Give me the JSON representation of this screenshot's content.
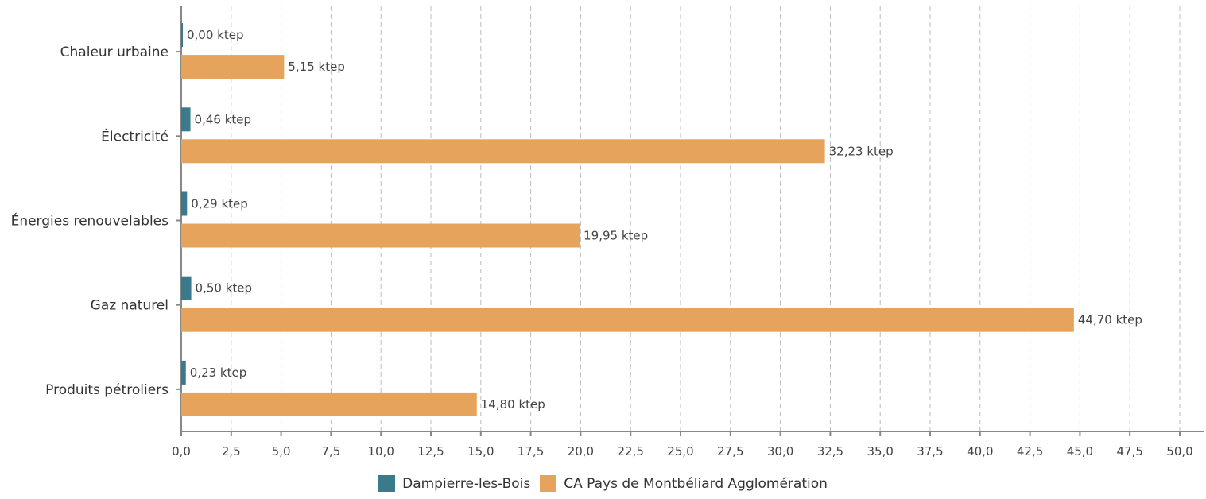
{
  "chart_data": {
    "type": "bar",
    "orientation": "horizontal",
    "categories": [
      "Chaleur urbaine",
      "Électricité",
      "Énergies renouvelables",
      "Gaz naturel",
      "Produits pétroliers"
    ],
    "series": [
      {
        "name": "Dampierre-les-Bois",
        "color": "#3a7a8a",
        "values": [
          0.0,
          0.46,
          0.29,
          0.5,
          0.23
        ],
        "labels": [
          "0,00 ktep",
          "0,46 ktep",
          "0,29 ktep",
          "0,50 ktep",
          "0,23 ktep"
        ]
      },
      {
        "name": "CA Pays de Montbéliard Agglomération",
        "color": "#e6a35c",
        "values": [
          5.15,
          32.23,
          19.95,
          44.7,
          14.8
        ],
        "labels": [
          "5,15 ktep",
          "32,23 ktep",
          "19,95 ktep",
          "44,70 ktep",
          "14,80 ktep"
        ]
      }
    ],
    "xlim": [
      0,
      50
    ],
    "x_ticks": [
      "0,0",
      "2,5",
      "5,0",
      "7,5",
      "10,0",
      "12,5",
      "15,0",
      "17,5",
      "20,0",
      "22,5",
      "25,0",
      "27,5",
      "30,0",
      "32,5",
      "35,0",
      "37,5",
      "40,0",
      "42,5",
      "45,0",
      "47,5",
      "50,0"
    ],
    "grid": "vertical dashed",
    "legend_position": "bottom-center"
  }
}
